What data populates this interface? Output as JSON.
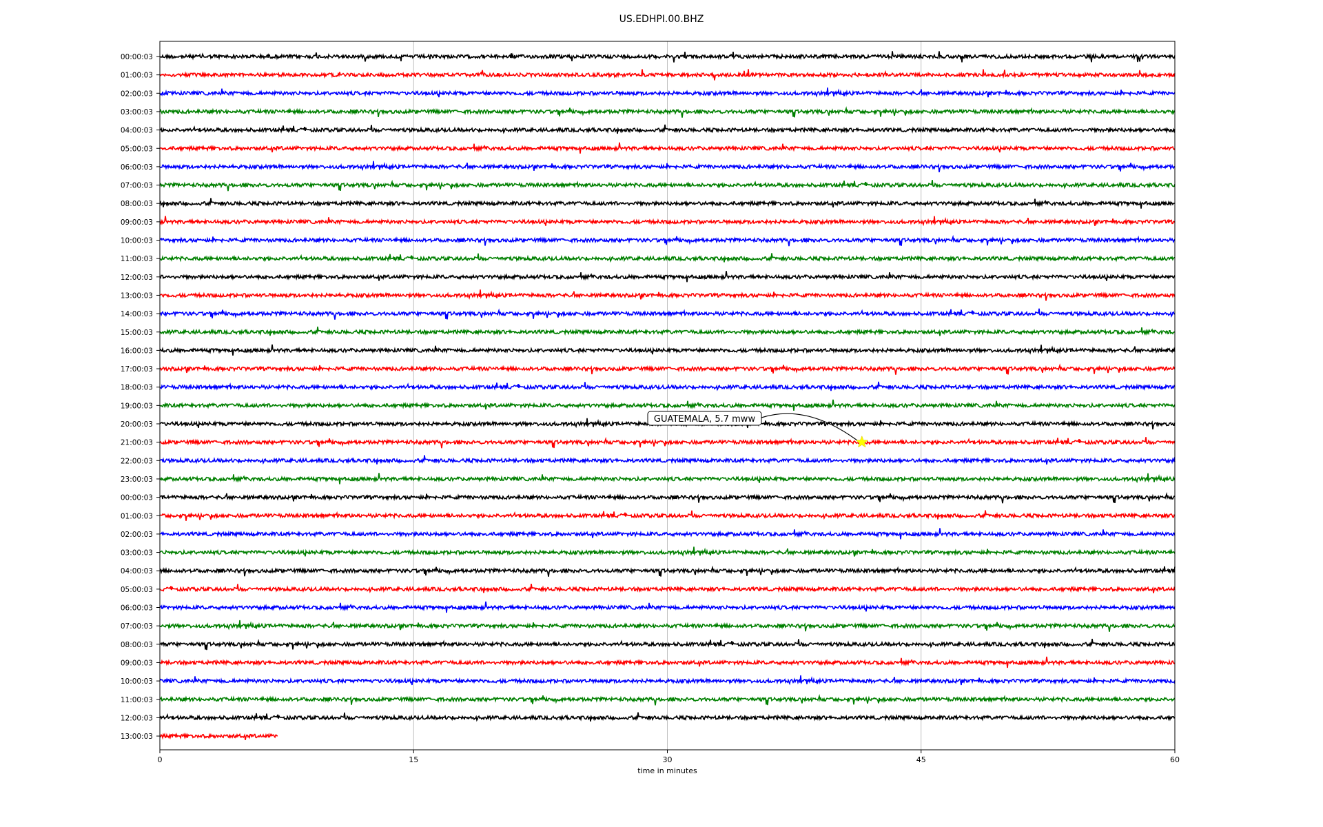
{
  "chart_data": {
    "type": "line",
    "title": "US.EDHPI.00.BHZ",
    "xlabel": "time in minutes",
    "ylabel": "",
    "xlim": [
      0,
      60
    ],
    "x_ticks": [
      "0",
      "15",
      "30",
      "45",
      "60"
    ],
    "grid": "vertical",
    "trace_colors": [
      "#000000",
      "#ff0000",
      "#0000ff",
      "#008000"
    ],
    "row_labels": [
      "00:00:03",
      "01:00:03",
      "02:00:03",
      "03:00:03",
      "04:00:03",
      "05:00:03",
      "06:00:03",
      "07:00:03",
      "08:00:03",
      "09:00:03",
      "10:00:03",
      "11:00:03",
      "12:00:03",
      "13:00:03",
      "14:00:03",
      "15:00:03",
      "16:00:03",
      "17:00:03",
      "18:00:03",
      "19:00:03",
      "20:00:03",
      "21:00:03",
      "22:00:03",
      "23:00:03",
      "00:00:03",
      "01:00:03",
      "02:00:03",
      "03:00:03",
      "04:00:03",
      "05:00:03",
      "06:00:03",
      "07:00:03",
      "08:00:03",
      "09:00:03",
      "10:00:03",
      "11:00:03",
      "12:00:03",
      "13:00:03"
    ],
    "last_row_end_minute": 7,
    "events": [
      {
        "label": "GUATEMALA, 5.7 mww",
        "row": 21,
        "minute": 41.5,
        "marker": "star",
        "marker_color": "#ffff00"
      }
    ]
  }
}
